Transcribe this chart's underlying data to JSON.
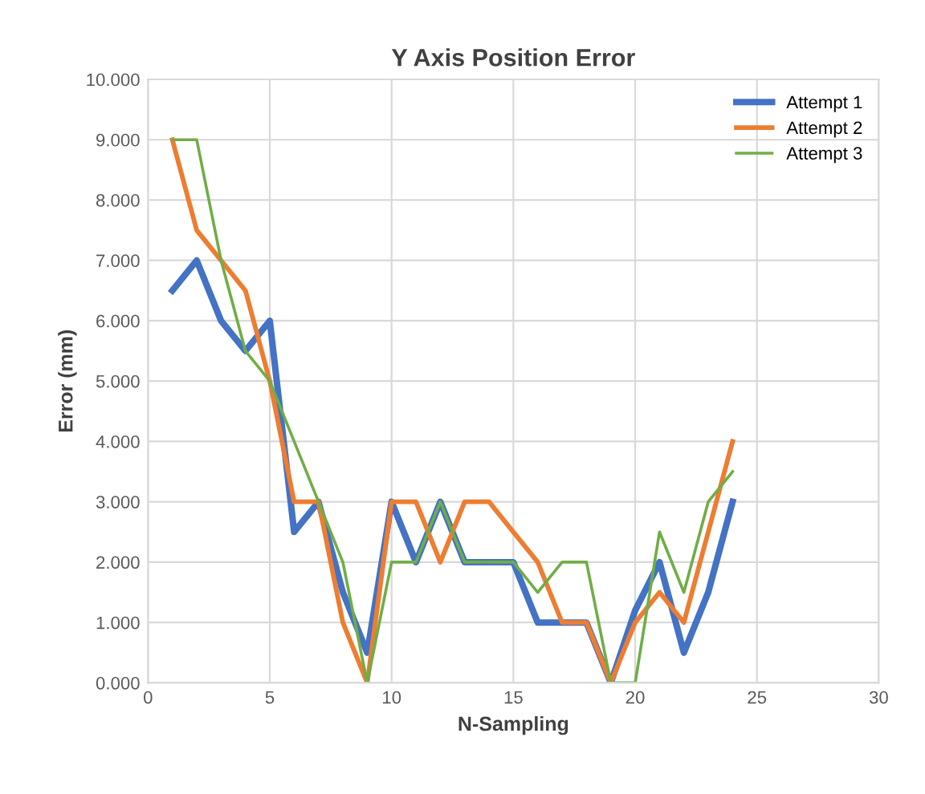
{
  "chart_data": {
    "type": "line",
    "title": "Y Axis Position Error",
    "xlabel": "N-Sampling",
    "ylabel": "Error (mm)",
    "x": [
      1,
      2,
      3,
      4,
      5,
      6,
      7,
      8,
      9,
      10,
      11,
      12,
      13,
      14,
      15,
      16,
      17,
      18,
      19,
      20,
      21,
      22,
      23,
      24
    ],
    "series": [
      {
        "name": "Attempt 1",
        "color": "#4472c4",
        "values": [
          6.5,
          7,
          6,
          5.5,
          6,
          2.5,
          3,
          1.5,
          0.5,
          3,
          2,
          3,
          2,
          2,
          2,
          1,
          1,
          1,
          0,
          1.2,
          2,
          0.5,
          1.5,
          3
        ]
      },
      {
        "name": "Attempt 2",
        "color": "#ed7d31",
        "values": [
          9,
          7.5,
          7,
          6.5,
          5,
          3,
          3,
          1,
          0,
          3,
          3,
          2,
          3,
          3,
          2.5,
          2,
          1,
          1,
          0,
          1,
          1.5,
          1,
          2.5,
          4
        ]
      },
      {
        "name": "Attempt 3",
        "color": "#70ad47",
        "values": [
          9,
          9,
          7,
          5.5,
          5,
          4,
          3,
          2,
          0,
          2,
          2,
          3,
          2,
          2,
          2,
          1.5,
          2,
          2,
          0,
          0,
          2.5,
          1.5,
          3,
          3.5
        ]
      }
    ],
    "xlim": [
      0,
      30
    ],
    "xticks": [
      0,
      5,
      10,
      15,
      20,
      25,
      30
    ],
    "ylim": [
      0,
      10
    ],
    "yticks": [
      {
        "value": 0,
        "label": "0.000"
      },
      {
        "value": 1,
        "label": "1.000"
      },
      {
        "value": 2,
        "label": "2.000"
      },
      {
        "value": 3,
        "label": "3.000"
      },
      {
        "value": 4,
        "label": "4.000"
      },
      {
        "value": 5,
        "label": "5.000"
      },
      {
        "value": 6,
        "label": "6.000"
      },
      {
        "value": 7,
        "label": "7.000"
      },
      {
        "value": 8,
        "label": "8.000"
      },
      {
        "value": 9,
        "label": "9.000"
      },
      {
        "value": 10,
        "label": "10.000"
      }
    ],
    "grid": true,
    "legend": "top right",
    "marker": "none",
    "line_style": "solid"
  }
}
